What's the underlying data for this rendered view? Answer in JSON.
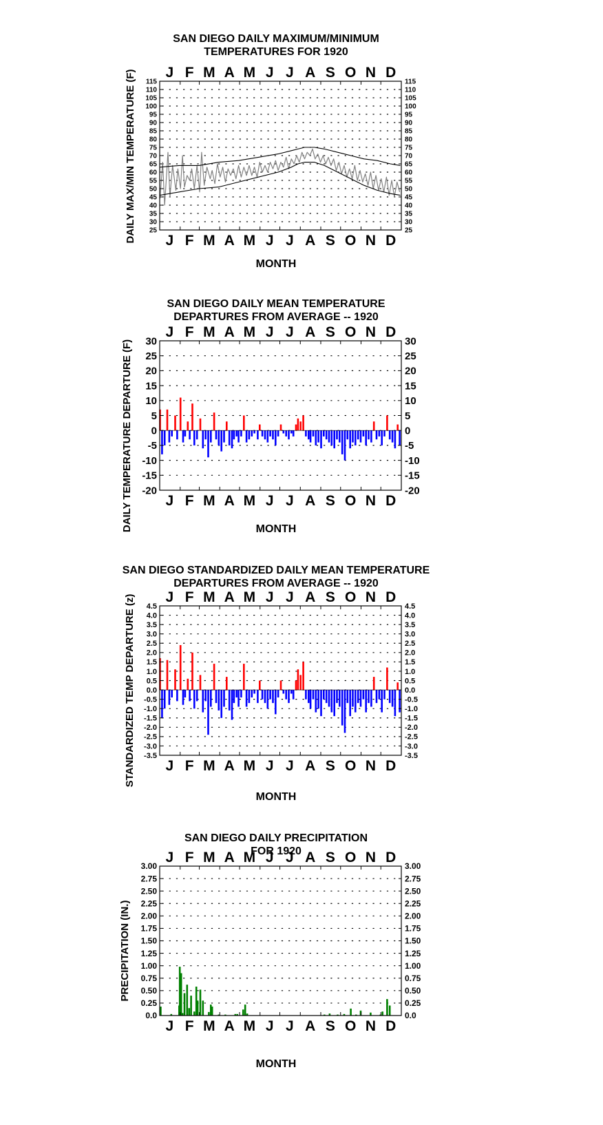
{
  "chart_data": [
    {
      "type": "line",
      "title_lines": [
        "SAN DIEGO DAILY MAXIMUM/MINIMUM",
        "TEMPERATURES FOR 1920"
      ],
      "xlabel": "MONTH",
      "ylabel": "DAILY MAX/MIN TEMPERATURE (F)",
      "months": [
        "J",
        "F",
        "M",
        "A",
        "M",
        "J",
        "J",
        "A",
        "S",
        "O",
        "N",
        "D"
      ],
      "ylim": [
        25,
        115
      ],
      "yticks": [
        "25",
        "30",
        "35",
        "40",
        "45",
        "50",
        "55",
        "60",
        "65",
        "70",
        "75",
        "80",
        "85",
        "90",
        "95",
        "100",
        "105",
        "110",
        "115"
      ],
      "grid": true,
      "series": [
        {
          "color": "#808080",
          "points": [
            [
              1,
              44
            ],
            [
              5,
              66
            ],
            [
              8,
              40
            ],
            [
              13,
              72
            ],
            [
              16,
              45
            ],
            [
              20,
              64
            ],
            [
              25,
              49
            ],
            [
              28,
              62
            ],
            [
              32,
              50
            ],
            [
              35,
              70
            ],
            [
              38,
              51
            ],
            [
              42,
              58
            ],
            [
              46,
              55
            ],
            [
              49,
              62
            ],
            [
              53,
              50
            ],
            [
              57,
              64
            ],
            [
              61,
              48
            ],
            [
              64,
              72
            ],
            [
              68,
              52
            ],
            [
              72,
              63
            ],
            [
              77,
              56
            ],
            [
              80,
              61
            ],
            [
              84,
              53
            ],
            [
              88,
              65
            ],
            [
              92,
              57
            ],
            [
              96,
              63
            ],
            [
              100,
              54
            ],
            [
              104,
              62
            ],
            [
              108,
              58
            ],
            [
              112,
              62
            ],
            [
              116,
              56
            ],
            [
              120,
              64
            ],
            [
              124,
              57
            ],
            [
              128,
              63
            ],
            [
              132,
              58
            ],
            [
              136,
              64
            ],
            [
              140,
              58
            ],
            [
              144,
              63
            ],
            [
              148,
              57
            ],
            [
              152,
              66
            ],
            [
              156,
              60
            ],
            [
              160,
              64
            ],
            [
              164,
              60
            ],
            [
              168,
              66
            ],
            [
              172,
              62
            ],
            [
              176,
              67
            ],
            [
              180,
              61
            ],
            [
              184,
              66
            ],
            [
              188,
              63
            ],
            [
              192,
              69
            ],
            [
              196,
              62
            ],
            [
              200,
              68
            ],
            [
              204,
              65
            ],
            [
              208,
              70
            ],
            [
              212,
              66
            ],
            [
              216,
              72
            ],
            [
              220,
              68
            ],
            [
              224,
              72
            ],
            [
              228,
              70
            ],
            [
              232,
              74
            ],
            [
              236,
              68
            ],
            [
              240,
              71
            ],
            [
              244,
              66
            ],
            [
              248,
              70
            ],
            [
              252,
              65
            ],
            [
              256,
              69
            ],
            [
              260,
              64
            ],
            [
              264,
              68
            ],
            [
              268,
              61
            ],
            [
              272,
              66
            ],
            [
              276,
              59
            ],
            [
              280,
              64
            ],
            [
              284,
              57
            ],
            [
              288,
              62
            ],
            [
              292,
              56
            ],
            [
              296,
              64
            ],
            [
              300,
              55
            ],
            [
              304,
              61
            ],
            [
              308,
              54
            ],
            [
              312,
              59
            ],
            [
              316,
              52
            ],
            [
              320,
              60
            ],
            [
              324,
              50
            ],
            [
              328,
              58
            ],
            [
              332,
              49
            ],
            [
              336,
              56
            ],
            [
              340,
              48
            ],
            [
              344,
              57
            ],
            [
              348,
              46
            ],
            [
              352,
              55
            ],
            [
              356,
              45
            ],
            [
              360,
              54
            ],
            [
              364,
              48
            ]
          ]
        },
        {
          "color": "#000000",
          "points": [
            [
              1,
              63
            ],
            [
              30,
              64
            ],
            [
              60,
              64
            ],
            [
              90,
              66
            ],
            [
              120,
              67
            ],
            [
              150,
              69
            ],
            [
              180,
              71
            ],
            [
              200,
              73
            ],
            [
              210,
              74
            ],
            [
              220,
              75
            ],
            [
              235,
              75
            ],
            [
              250,
              74
            ],
            [
              270,
              72
            ],
            [
              290,
              70
            ],
            [
              310,
              68
            ],
            [
              330,
              67
            ],
            [
              350,
              65
            ],
            [
              365,
              64
            ]
          ]
        },
        {
          "color": "#000000",
          "points": [
            [
              1,
              46
            ],
            [
              30,
              48
            ],
            [
              60,
              50
            ],
            [
              90,
              51
            ],
            [
              120,
              54
            ],
            [
              150,
              57
            ],
            [
              180,
              60
            ],
            [
              200,
              63
            ],
            [
              210,
              65
            ],
            [
              220,
              66
            ],
            [
              235,
              66
            ],
            [
              250,
              64
            ],
            [
              270,
              60
            ],
            [
              290,
              56
            ],
            [
              310,
              52
            ],
            [
              330,
              49
            ],
            [
              350,
              47
            ],
            [
              365,
              46
            ]
          ]
        }
      ]
    },
    {
      "type": "bar",
      "title_lines": [
        "SAN DIEGO DAILY MEAN TEMPERATURE",
        "DEPARTURES FROM AVERAGE -- 1920"
      ],
      "xlabel": "MONTH",
      "ylabel": "DAILY TEMPERATURE DEPARTURE (F)",
      "months": [
        "J",
        "F",
        "M",
        "A",
        "M",
        "J",
        "J",
        "A",
        "S",
        "O",
        "N",
        "D"
      ],
      "ylim": [
        -20,
        30
      ],
      "yticks": [
        "-20",
        "-15",
        "-10",
        "-5",
        "0",
        "5",
        "10",
        "15",
        "20",
        "25",
        "30"
      ],
      "grid": true,
      "pos_color": "#ff0000",
      "neg_color": "#0000ff",
      "x": [
        1,
        4,
        8,
        12,
        15,
        19,
        24,
        27,
        32,
        36,
        39,
        43,
        46,
        50,
        53,
        57,
        62,
        66,
        70,
        74,
        78,
        83,
        86,
        90,
        94,
        98,
        102,
        106,
        110,
        113,
        117,
        120,
        124,
        128,
        132,
        136,
        140,
        144,
        149,
        152,
        156,
        160,
        164,
        168,
        172,
        176,
        180,
        184,
        188,
        192,
        196,
        200,
        203,
        207,
        210,
        214,
        218,
        222,
        226,
        229,
        233,
        237,
        241,
        245,
        249,
        253,
        257,
        261,
        265,
        269,
        273,
        277,
        281,
        285,
        289,
        293,
        297,
        301,
        305,
        309,
        313,
        317,
        321,
        325,
        329,
        333,
        337,
        341,
        345,
        349,
        353,
        357,
        361,
        364
      ],
      "values": [
        7,
        -8,
        -5,
        7,
        -4,
        -2,
        5,
        -3,
        11,
        -4,
        -2,
        3,
        -3,
        9,
        -5,
        -3,
        4,
        -6,
        -3,
        -9,
        -4,
        6,
        -3,
        -5,
        -7,
        -4,
        3,
        -5,
        -6,
        -3,
        -2,
        -4,
        -2,
        5,
        -4,
        -3,
        -2,
        -1,
        -3,
        2,
        -2,
        -3,
        -4,
        -2,
        -3,
        -5,
        -2,
        2,
        -1,
        -2,
        -3,
        -1,
        -2,
        2,
        4,
        3,
        5,
        -2,
        -3,
        -4,
        -2,
        -5,
        -4,
        -6,
        -2,
        -3,
        -4,
        -5,
        -6,
        -3,
        -4,
        -8,
        -10,
        -3,
        -6,
        -4,
        -5,
        -3,
        -4,
        -2,
        -5,
        -3,
        -4,
        3,
        -3,
        -2,
        -5,
        -2,
        5,
        -3,
        -4,
        -6,
        2,
        -5
      ]
    },
    {
      "type": "bar",
      "title_lines": [
        "SAN DIEGO STANDARDIZED DAILY MEAN TEMPERATURE",
        "DEPARTURES FROM AVERAGE -- 1920"
      ],
      "xlabel": "MONTH",
      "ylabel": "STANDARDIZED TEMP DEPARTURE (z)",
      "months": [
        "J",
        "F",
        "M",
        "A",
        "M",
        "J",
        "J",
        "A",
        "S",
        "O",
        "N",
        "D"
      ],
      "ylim": [
        -3.5,
        4.5
      ],
      "yticks": [
        "-3.5",
        "-3.0",
        "-2.5",
        "-2.0",
        "-1.5",
        "-1.0",
        "-0.5",
        "0.0",
        "0.5",
        "1.0",
        "1.5",
        "2.0",
        "2.5",
        "3.0",
        "3.5",
        "4.0",
        "4.5"
      ],
      "grid": true,
      "pos_color": "#ff0000",
      "neg_color": "#0000ff",
      "x": [
        1,
        4,
        8,
        12,
        15,
        19,
        24,
        27,
        32,
        36,
        39,
        43,
        46,
        50,
        53,
        57,
        62,
        66,
        70,
        74,
        78,
        83,
        86,
        90,
        94,
        98,
        102,
        106,
        110,
        113,
        117,
        120,
        124,
        128,
        132,
        136,
        140,
        144,
        149,
        152,
        156,
        160,
        164,
        168,
        172,
        176,
        180,
        184,
        188,
        192,
        196,
        200,
        203,
        207,
        210,
        214,
        218,
        222,
        226,
        229,
        233,
        237,
        241,
        245,
        249,
        253,
        257,
        261,
        265,
        269,
        273,
        277,
        281,
        285,
        289,
        293,
        297,
        301,
        305,
        309,
        313,
        317,
        321,
        325,
        329,
        333,
        337,
        341,
        345,
        349,
        353,
        357,
        361,
        364
      ],
      "values": [
        1.7,
        -1.5,
        -1.0,
        1.6,
        -0.8,
        -0.4,
        1.1,
        -0.6,
        2.4,
        -0.8,
        -0.4,
        0.6,
        -0.6,
        2.0,
        -1.0,
        -0.6,
        0.8,
        -1.2,
        -0.6,
        -2.4,
        -0.9,
        1.4,
        -0.7,
        -1.1,
        -1.5,
        -0.9,
        0.7,
        -1.1,
        -1.6,
        -0.7,
        -0.4,
        -0.9,
        -0.4,
        1.4,
        -0.9,
        -0.7,
        -0.4,
        -0.2,
        -0.7,
        0.5,
        -0.5,
        -0.7,
        -1.0,
        -0.5,
        -0.7,
        -1.3,
        -0.4,
        0.5,
        -0.2,
        -0.5,
        -0.7,
        -0.2,
        -0.5,
        0.5,
        1.1,
        0.8,
        1.5,
        -0.5,
        -0.7,
        -1.0,
        -0.5,
        -1.2,
        -1.0,
        -1.4,
        -0.5,
        -0.7,
        -0.9,
        -1.2,
        -1.4,
        -0.7,
        -0.9,
        -1.9,
        -2.3,
        -0.7,
        -1.4,
        -0.9,
        -1.2,
        -0.7,
        -0.9,
        -0.5,
        -1.2,
        -0.7,
        -0.9,
        0.7,
        -0.7,
        -0.5,
        -1.2,
        -0.5,
        1.2,
        -0.7,
        -0.9,
        -1.4,
        0.4,
        -1.2
      ]
    },
    {
      "type": "bar",
      "title_lines": [
        "SAN DIEGO DAILY PRECIPITATION",
        "FOR 1920"
      ],
      "xlabel": "MONTH",
      "ylabel": "PRECIPITATION (IN.)",
      "months": [
        "J",
        "F",
        "M",
        "A",
        "M",
        "J",
        "J",
        "A",
        "S",
        "O",
        "N",
        "D"
      ],
      "ylim": [
        0,
        3
      ],
      "yticks": [
        "0.0",
        "0.25",
        "0.50",
        "0.75",
        "1.00",
        "1.25",
        "1.50",
        "1.75",
        "2.00",
        "2.25",
        "2.50",
        "2.75",
        "3.00"
      ],
      "grid": true,
      "bar_color": "#008000",
      "x": [
        2,
        18,
        30,
        31,
        33,
        35,
        38,
        42,
        45,
        48,
        53,
        56,
        58,
        62,
        66,
        75,
        78,
        80,
        90,
        100,
        115,
        118,
        127,
        130,
        133,
        250,
        258,
        270,
        280,
        290,
        298,
        305,
        320,
        335,
        338,
        345,
        349
      ],
      "values": [
        0.18,
        0.03,
        0.2,
        0.98,
        0.85,
        0.05,
        0.45,
        0.62,
        0.15,
        0.4,
        0.08,
        0.58,
        0.3,
        0.52,
        0.3,
        0.07,
        0.22,
        0.18,
        0.02,
        0.02,
        0.03,
        0.03,
        0.12,
        0.22,
        0.04,
        0.02,
        0.04,
        0.02,
        0.03,
        0.14,
        0.02,
        0.1,
        0.06,
        0.02,
        0.08,
        0.33,
        0.2
      ]
    }
  ]
}
